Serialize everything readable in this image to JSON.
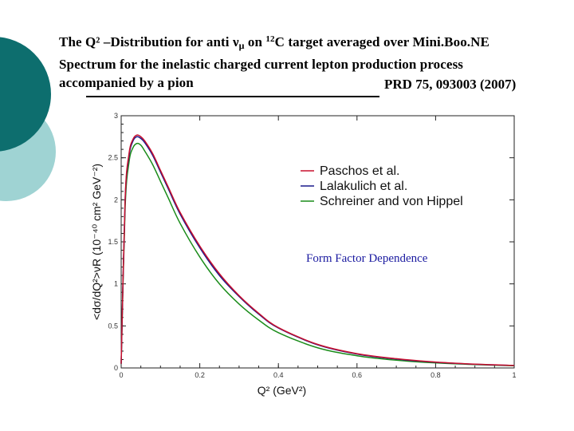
{
  "slide": {
    "title_lines": [
      "The Q² –Distribution for anti ν",
      "μ",
      " on ",
      "12",
      "C target averaged over Mini.Boo.NE",
      "Spectrum for the inelastic charged current lepton production process",
      "accompanied by a pion"
    ],
    "reference": "PRD 75, 093003 (2007)",
    "colors": {
      "deco_dark": "#0d6e6e",
      "deco_light": "#9fd3d3"
    }
  },
  "chart_data": {
    "type": "line",
    "xlabel": "Q² (GeV²)",
    "ylabel": "<dσ/dQ²>νR (10⁻⁴⁰ cm² GeV⁻²)",
    "xlim": [
      0,
      1
    ],
    "ylim": [
      0,
      3
    ],
    "x_ticks": [
      "0",
      "0.2",
      "0.4",
      "0.6",
      "0.8",
      "1"
    ],
    "y_ticks": [
      "0",
      "0.5",
      "1",
      "1.5",
      "2",
      "2.5",
      "3"
    ],
    "grid": false,
    "legend_position": "top-right",
    "annotation": "Form Factor Dependence",
    "x": [
      0,
      0.01,
      0.02,
      0.03,
      0.04,
      0.05,
      0.06,
      0.08,
      0.1,
      0.12,
      0.15,
      0.2,
      0.25,
      0.3,
      0.35,
      0.4,
      0.5,
      0.6,
      0.7,
      0.8,
      0.9,
      1.0
    ],
    "series": [
      {
        "name": "Paschos et al.",
        "color": "#c8102e",
        "values": [
          0.05,
          2.0,
          2.55,
          2.72,
          2.77,
          2.75,
          2.7,
          2.55,
          2.35,
          2.15,
          1.85,
          1.45,
          1.12,
          0.86,
          0.65,
          0.48,
          0.28,
          0.17,
          0.11,
          0.07,
          0.045,
          0.03
        ]
      },
      {
        "name": "Lalakulich et al.",
        "color": "#1a1a8c",
        "values": [
          0.05,
          1.98,
          2.52,
          2.7,
          2.75,
          2.73,
          2.68,
          2.53,
          2.33,
          2.13,
          1.83,
          1.43,
          1.1,
          0.85,
          0.64,
          0.475,
          0.275,
          0.165,
          0.105,
          0.068,
          0.044,
          0.029
        ]
      },
      {
        "name": "Schreiner and von Hippel",
        "color": "#1a8c1a",
        "values": [
          0.05,
          1.9,
          2.45,
          2.62,
          2.67,
          2.65,
          2.58,
          2.42,
          2.22,
          2.02,
          1.72,
          1.32,
          1.0,
          0.76,
          0.57,
          0.42,
          0.24,
          0.145,
          0.092,
          0.06,
          0.04,
          0.026
        ]
      }
    ]
  }
}
